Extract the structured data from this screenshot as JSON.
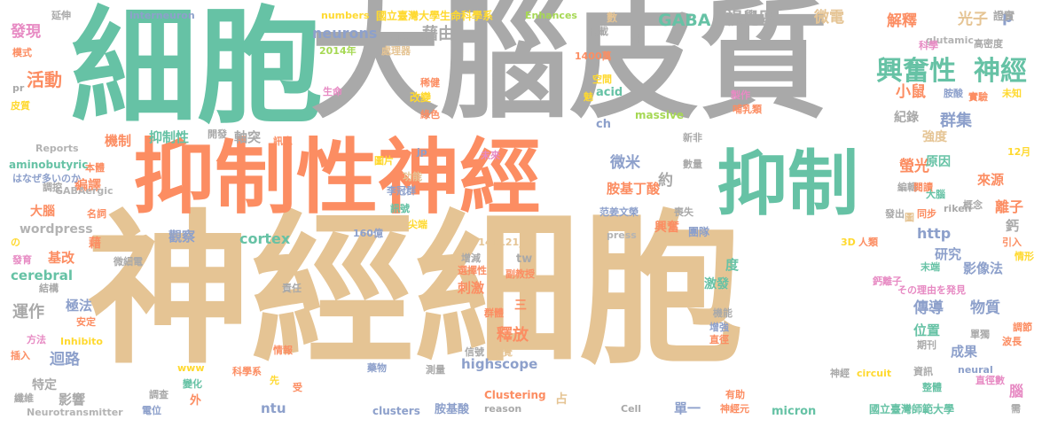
{
  "palette": {
    "gray": "#a9a9a9",
    "green": "#66c2a5",
    "orange": "#fc8d62",
    "blue": "#8da0cb",
    "pink": "#e78ac3",
    "lime": "#a6d854",
    "yellow": "#ffd92f",
    "tan": "#e5c494",
    "lightgray": "#b3b3b3"
  },
  "words": [
    {
      "text": "神經細胞",
      "color": "tan"
    },
    {
      "text": "細胞",
      "color": "green"
    },
    {
      "text": "大腦皮質",
      "color": "gray"
    },
    {
      "text": "抑制性神經",
      "color": "orange"
    },
    {
      "text": "抑制",
      "color": "green"
    },
    {
      "text": "興奮性",
      "color": "green"
    },
    {
      "text": "神經",
      "color": "green"
    },
    {
      "text": "GABA",
      "color": "green"
    },
    {
      "text": "視覺區",
      "color": "gray"
    },
    {
      "text": "微電",
      "color": "tan"
    },
    {
      "text": "解釋",
      "color": "orange"
    },
    {
      "text": "光子",
      "color": "tan"
    },
    {
      "text": "p",
      "color": "blue"
    },
    {
      "text": "證實",
      "color": "gray"
    },
    {
      "text": "發現",
      "color": "pink"
    },
    {
      "text": "活動",
      "color": "orange"
    },
    {
      "text": "neurons",
      "color": "blue"
    },
    {
      "text": "藉由",
      "color": "gray"
    },
    {
      "text": "小鼠",
      "color": "orange"
    },
    {
      "text": "群集",
      "color": "blue"
    },
    {
      "text": "紀錄",
      "color": "gray"
    },
    {
      "text": "強度",
      "color": "tan"
    },
    {
      "text": "機制",
      "color": "orange"
    },
    {
      "text": "抑制性",
      "color": "green"
    },
    {
      "text": "軸突",
      "color": "gray"
    },
    {
      "text": "微米",
      "color": "blue"
    },
    {
      "text": "約",
      "color": "gray"
    },
    {
      "text": "胺基丁酸",
      "color": "orange"
    },
    {
      "text": "螢光",
      "color": "orange"
    },
    {
      "text": "原因",
      "color": "green"
    },
    {
      "text": "來源",
      "color": "orange"
    },
    {
      "text": "離子",
      "color": "orange"
    },
    {
      "text": "編譯",
      "color": "orange"
    },
    {
      "text": "大腦",
      "color": "orange"
    },
    {
      "text": "wordpress",
      "color": "lightgray"
    },
    {
      "text": "觀察",
      "color": "blue"
    },
    {
      "text": "cortex",
      "color": "green"
    },
    {
      "text": "http",
      "color": "blue"
    },
    {
      "text": "研究",
      "color": "blue"
    },
    {
      "text": "影像法",
      "color": "blue"
    },
    {
      "text": "基改",
      "color": "orange"
    },
    {
      "text": "cerebral",
      "color": "green"
    },
    {
      "text": "運作",
      "color": "gray"
    },
    {
      "text": "極法",
      "color": "blue"
    },
    {
      "text": "刺激",
      "color": "orange"
    },
    {
      "text": "激發",
      "color": "green"
    },
    {
      "text": "傳導",
      "color": "blue"
    },
    {
      "text": "物質",
      "color": "blue"
    },
    {
      "text": "釋放",
      "color": "orange"
    },
    {
      "text": "位置",
      "color": "green"
    },
    {
      "text": "迴路",
      "color": "blue"
    },
    {
      "text": "highscope",
      "color": "blue"
    },
    {
      "text": "成果",
      "color": "blue"
    },
    {
      "text": "特定",
      "color": "gray"
    },
    {
      "text": "影響",
      "color": "gray"
    },
    {
      "text": "ntu",
      "color": "blue"
    },
    {
      "text": "單一",
      "color": "blue"
    },
    {
      "text": "micron",
      "color": "green"
    },
    {
      "text": "clusters",
      "color": "blue"
    },
    {
      "text": "胺基酸",
      "color": "blue"
    },
    {
      "text": "國立臺灣師範大學",
      "color": "green"
    },
    {
      "text": "國立臺灣大學生命科學系",
      "color": "yellow"
    },
    {
      "text": "Neurotransmitter",
      "color": "lightgray"
    },
    {
      "text": "aminobutyric",
      "color": "green"
    },
    {
      "text": "Reports",
      "color": "lightgray"
    },
    {
      "text": "interneuron",
      "color": "blue"
    },
    {
      "text": "numbers",
      "color": "yellow"
    },
    {
      "text": "Enhances",
      "color": "lime"
    },
    {
      "text": "acid",
      "color": "green"
    },
    {
      "text": "massive",
      "color": "lime"
    },
    {
      "text": "ch",
      "color": "blue"
    },
    {
      "text": "glutamic",
      "color": "lightgray"
    },
    {
      "text": "GABAergic",
      "color": "lightgray"
    },
    {
      "text": "riken",
      "color": "gray"
    },
    {
      "text": "press",
      "color": "lightgray"
    },
    {
      "text": "tw",
      "color": "gray"
    },
    {
      "text": "20141121_1",
      "color": "tan"
    },
    {
      "text": "Clustering",
      "color": "orange"
    },
    {
      "text": "Cell",
      "color": "gray"
    },
    {
      "text": "reason",
      "color": "gray"
    },
    {
      "text": "circuit",
      "color": "yellow"
    },
    {
      "text": "neural",
      "color": "blue"
    },
    {
      "text": "Inhibito",
      "color": "yellow"
    },
    {
      "text": "www",
      "color": "yellow"
    },
    {
      "text": "jp",
      "color": "blue"
    },
    {
      "text": "2014年",
      "color": "lime"
    },
    {
      "text": "1400萬",
      "color": "orange"
    },
    {
      "text": "160億",
      "color": "blue"
    },
    {
      "text": "3D",
      "color": "yellow"
    },
    {
      "text": "人類",
      "color": "orange"
    },
    {
      "text": "12月",
      "color": "yellow"
    },
    {
      "text": "はなぜ多いのか",
      "color": "blue"
    },
    {
      "text": "その理由を発見",
      "color": "pink"
    },
    {
      "text": "の",
      "color": "yellow"
    },
    {
      "text": "延伸",
      "color": "gray"
    },
    {
      "text": "模式",
      "color": "orange"
    },
    {
      "text": "刊載",
      "color": "gray"
    },
    {
      "text": "方向",
      "color": "gray"
    },
    {
      "text": "處理器",
      "color": "tan"
    },
    {
      "text": "數",
      "color": "tan"
    },
    {
      "text": "中",
      "color": "gray"
    },
    {
      "text": "科學",
      "color": "pink"
    },
    {
      "text": "高密度",
      "color": "gray"
    },
    {
      "text": "未知",
      "color": "yellow"
    },
    {
      "text": "空間",
      "color": "yellow"
    },
    {
      "text": "稀健",
      "color": "orange"
    },
    {
      "text": "改變",
      "color": "yellow"
    },
    {
      "text": "生命",
      "color": "pink"
    },
    {
      "text": "綠色",
      "color": "orange"
    },
    {
      "text": "魅",
      "color": "yellow"
    },
    {
      "text": "製作",
      "color": "pink"
    },
    {
      "text": "哺乳類",
      "color": "orange"
    },
    {
      "text": "胺酸",
      "color": "blue"
    },
    {
      "text": "實驗",
      "color": "orange"
    },
    {
      "text": "皮質",
      "color": "yellow"
    },
    {
      "text": "pr",
      "color": "gray"
    },
    {
      "text": "開發",
      "color": "gray"
    },
    {
      "text": "訊息",
      "color": "orange"
    },
    {
      "text": "本體",
      "color": "orange"
    },
    {
      "text": "調控",
      "color": "gray"
    },
    {
      "text": "圖片",
      "color": "yellow"
    },
    {
      "text": "功能",
      "color": "tan"
    },
    {
      "text": "未來",
      "color": "pink"
    },
    {
      "text": "新非",
      "color": "gray"
    },
    {
      "text": "數量",
      "color": "gray"
    },
    {
      "text": "李冠群",
      "color": "blue"
    },
    {
      "text": "訊號",
      "color": "green"
    },
    {
      "text": "尖端",
      "color": "yellow"
    },
    {
      "text": "范姜文榮",
      "color": "blue"
    },
    {
      "text": "喪失",
      "color": "gray"
    },
    {
      "text": "名詞",
      "color": "orange"
    },
    {
      "text": "藉",
      "color": "orange"
    },
    {
      "text": "興奮",
      "color": "orange"
    },
    {
      "text": "團隊",
      "color": "blue"
    },
    {
      "text": "編輯",
      "color": "gray"
    },
    {
      "text": "閱讀",
      "color": "orange"
    },
    {
      "text": "大腦",
      "color": "green"
    },
    {
      "text": "同步",
      "color": "orange"
    },
    {
      "text": "概念",
      "color": "gray"
    },
    {
      "text": "發出",
      "color": "gray"
    },
    {
      "text": "圖",
      "color": "tan"
    },
    {
      "text": "鈣",
      "color": "gray"
    },
    {
      "text": "引入",
      "color": "orange"
    },
    {
      "text": "情形",
      "color": "yellow"
    },
    {
      "text": "末端",
      "color": "green"
    },
    {
      "text": "鈣離子",
      "color": "pink"
    },
    {
      "text": "發育",
      "color": "pink"
    },
    {
      "text": "結構",
      "color": "gray"
    },
    {
      "text": "微細電",
      "color": "gray"
    },
    {
      "text": "增減",
      "color": "gray"
    },
    {
      "text": "責任",
      "color": "gray"
    },
    {
      "text": "選擇性",
      "color": "orange"
    },
    {
      "text": "副教授",
      "color": "orange"
    },
    {
      "text": "安定",
      "color": "orange"
    },
    {
      "text": "度",
      "color": "green"
    },
    {
      "text": "三",
      "color": "orange"
    },
    {
      "text": "群體",
      "color": "orange"
    },
    {
      "text": "機能",
      "color": "gray"
    },
    {
      "text": "增強",
      "color": "blue"
    },
    {
      "text": "直徑",
      "color": "orange"
    },
    {
      "text": "調節",
      "color": "orange"
    },
    {
      "text": "波長",
      "color": "orange"
    },
    {
      "text": "單獨",
      "color": "gray"
    },
    {
      "text": "期刊",
      "color": "gray"
    },
    {
      "text": "資訊",
      "color": "gray"
    },
    {
      "text": "直徑數",
      "color": "pink"
    },
    {
      "text": "整體",
      "color": "green"
    },
    {
      "text": "腦",
      "color": "pink"
    },
    {
      "text": "需",
      "color": "gray"
    },
    {
      "text": "方法",
      "color": "pink"
    },
    {
      "text": "插入",
      "color": "orange"
    },
    {
      "text": "情報",
      "color": "orange"
    },
    {
      "text": "信號",
      "color": "gray"
    },
    {
      "text": "視覺",
      "color": "tan"
    },
    {
      "text": "藥物",
      "color": "blue"
    },
    {
      "text": "測量",
      "color": "gray"
    },
    {
      "text": "變化",
      "color": "green"
    },
    {
      "text": "科學系",
      "color": "orange"
    },
    {
      "text": "先",
      "color": "yellow"
    },
    {
      "text": "受",
      "color": "orange"
    },
    {
      "text": "外",
      "color": "orange"
    },
    {
      "text": "纖維",
      "color": "gray"
    },
    {
      "text": "調查",
      "color": "gray"
    },
    {
      "text": "電位",
      "color": "blue"
    },
    {
      "text": "占",
      "color": "tan"
    },
    {
      "text": "有助",
      "color": "orange"
    },
    {
      "text": "神經元",
      "color": "orange"
    },
    {
      "text": "神經",
      "color": "gray"
    }
  ]
}
